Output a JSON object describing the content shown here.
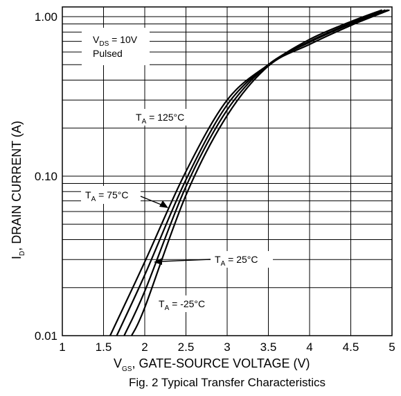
{
  "chart_data": {
    "type": "line",
    "title": "Fig. 2  Typical Transfer Characteristics",
    "xlabel": {
      "main": "V",
      "sub": "GS",
      "rest": ", GATE-SOURCE VOLTAGE (V)"
    },
    "ylabel": {
      "main": "I",
      "sub": "D",
      "rest": ", DRAIN CURRENT (A)"
    },
    "xlim": [
      1,
      5
    ],
    "ylim": [
      0.01,
      1.15
    ],
    "yscale": "log",
    "grid": true,
    "x_ticks": [
      {
        "value": 1,
        "label": "1"
      },
      {
        "value": 1.5,
        "label": "1.5"
      },
      {
        "value": 2,
        "label": "2"
      },
      {
        "value": 2.5,
        "label": "2.5"
      },
      {
        "value": 3,
        "label": "3"
      },
      {
        "value": 3.5,
        "label": "3.5"
      },
      {
        "value": 4,
        "label": "4"
      },
      {
        "value": 4.5,
        "label": "4.5"
      },
      {
        "value": 5,
        "label": "5"
      }
    ],
    "y_ticks": [
      {
        "value": 0.01,
        "label": "0.01"
      },
      {
        "value": 0.1,
        "label": "0.10"
      },
      {
        "value": 1,
        "label": "1.00"
      }
    ],
    "conditions": [
      {
        "main": "V",
        "sub": "DS",
        "rest": " = 10V"
      },
      {
        "main": "Pulsed",
        "sub": "",
        "rest": ""
      }
    ],
    "series": [
      {
        "name": "T_A = 125°C",
        "label": {
          "main": "T",
          "sub": "A",
          "rest": " = 125°C"
        },
        "x": [
          1.58,
          2.0,
          2.5,
          3.0,
          3.5,
          4.0,
          4.5,
          4.88
        ],
        "y": [
          0.01,
          0.029,
          0.107,
          0.3,
          0.5,
          0.72,
          0.93,
          1.1
        ]
      },
      {
        "name": "T_A = 75°C",
        "label": {
          "main": "T",
          "sub": "A",
          "rest": " = 75°C"
        },
        "x": [
          1.66,
          2.0,
          2.5,
          3.0,
          3.5,
          4.0,
          4.5,
          4.92
        ],
        "y": [
          0.01,
          0.024,
          0.095,
          0.28,
          0.5,
          0.7,
          0.91,
          1.1
        ]
      },
      {
        "name": "T_A = 25°C",
        "label": {
          "main": "T",
          "sub": "A",
          "rest": " = 25°C"
        },
        "x": [
          1.75,
          2.0,
          2.5,
          3.0,
          3.5,
          4.0,
          4.5,
          4.95
        ],
        "y": [
          0.01,
          0.019,
          0.086,
          0.26,
          0.5,
          0.69,
          0.9,
          1.1
        ]
      },
      {
        "name": "T_A = -25°C",
        "label": {
          "main": "T",
          "sub": "A",
          "rest": " = -25°C"
        },
        "x": [
          1.84,
          2.0,
          2.5,
          3.0,
          3.5,
          4.0,
          4.5,
          4.97
        ],
        "y": [
          0.01,
          0.015,
          0.076,
          0.24,
          0.49,
          0.67,
          0.88,
          1.1
        ]
      }
    ]
  }
}
